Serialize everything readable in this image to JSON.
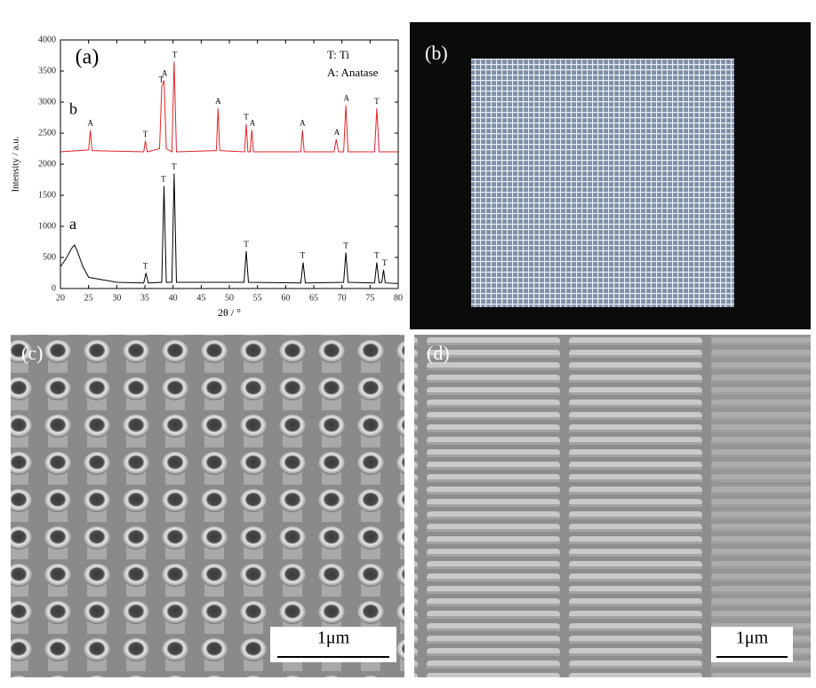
{
  "chart_data": {
    "type": "line",
    "panel_label": "(a)",
    "x_label": "2θ / °",
    "y_label": "Intensity / a.u.",
    "legend_lines": [
      "T: Ti",
      "A: Anatase"
    ],
    "xlim": [
      20,
      80
    ],
    "xticks": [
      20,
      25,
      30,
      35,
      40,
      45,
      50,
      55,
      60,
      65,
      70,
      75,
      80
    ],
    "ylim": [
      0,
      4000
    ],
    "yticks": [
      0,
      500,
      1000,
      1500,
      2000,
      2500,
      3000,
      3500,
      4000
    ],
    "series": [
      {
        "name": "a",
        "color": "#000000",
        "x": [
          20,
          21,
          22,
          22.5,
          23,
          24,
          25,
          30,
          34.8,
          35.2,
          35.6,
          38,
          38.4,
          38.8,
          39.8,
          40.2,
          40.6,
          52.6,
          53,
          53.4,
          62.7,
          63.1,
          63.5,
          70.3,
          70.7,
          71.1,
          75.8,
          76.2,
          76.6,
          77.1,
          77.4,
          77.7,
          80
        ],
        "values": [
          350,
          480,
          650,
          700,
          600,
          350,
          180,
          100,
          90,
          250,
          90,
          100,
          1650,
          100,
          100,
          1850,
          100,
          100,
          600,
          100,
          90,
          420,
          90,
          100,
          580,
          100,
          90,
          420,
          90,
          100,
          300,
          90,
          80
        ]
      },
      {
        "name": "b",
        "color": "#e0242a",
        "x": [
          20,
          25,
          25.3,
          25.6,
          34.8,
          35.1,
          35.4,
          37.6,
          38,
          38.4,
          38.8,
          39.8,
          40.2,
          40.6,
          47.7,
          48,
          48.3,
          52.7,
          53,
          53.3,
          53.7,
          54,
          54.3,
          62.7,
          63,
          63.3,
          68.6,
          69,
          69.4,
          70.3,
          70.7,
          71.1,
          75.8,
          76.2,
          76.6,
          80
        ],
        "values": [
          2200,
          2230,
          2550,
          2220,
          2200,
          2380,
          2200,
          2250,
          3250,
          3350,
          2250,
          2200,
          3650,
          2200,
          2220,
          2900,
          2220,
          2200,
          2650,
          2200,
          2200,
          2550,
          2200,
          2200,
          2550,
          2200,
          2200,
          2400,
          2200,
          2200,
          2950,
          2200,
          2200,
          2900,
          2200,
          2200
        ]
      }
    ],
    "annotations": [
      {
        "text": "A",
        "x": 25.3,
        "y": 2650
      },
      {
        "text": "T",
        "x": 35.1,
        "y": 2470
      },
      {
        "text": "T",
        "x": 37.9,
        "y": 3350
      },
      {
        "text": "A",
        "x": 38.5,
        "y": 3450
      },
      {
        "text": "T",
        "x": 40.3,
        "y": 3750
      },
      {
        "text": "A",
        "x": 48,
        "y": 3000
      },
      {
        "text": "T",
        "x": 53,
        "y": 2750
      },
      {
        "text": "A",
        "x": 54.1,
        "y": 2650
      },
      {
        "text": "A",
        "x": 63,
        "y": 2650
      },
      {
        "text": "A",
        "x": 69.1,
        "y": 2500
      },
      {
        "text": "A",
        "x": 70.8,
        "y": 3050
      },
      {
        "text": "T",
        "x": 76.2,
        "y": 3000
      },
      {
        "text": "T",
        "x": 35.1,
        "y": 350
      },
      {
        "text": "T",
        "x": 38.3,
        "y": 1750
      },
      {
        "text": "T",
        "x": 40.2,
        "y": 1950
      },
      {
        "text": "T",
        "x": 53,
        "y": 700
      },
      {
        "text": "T",
        "x": 63,
        "y": 520
      },
      {
        "text": "T",
        "x": 70.7,
        "y": 680
      },
      {
        "text": "T",
        "x": 76.2,
        "y": 520
      },
      {
        "text": "T",
        "x": 77.6,
        "y": 400
      }
    ]
  },
  "panels": [
    {
      "label": "(b)"
    },
    {
      "label": "(c)",
      "scale_bar": "1μm"
    },
    {
      "label": "(d)",
      "scale_bar": "1μm"
    }
  ]
}
